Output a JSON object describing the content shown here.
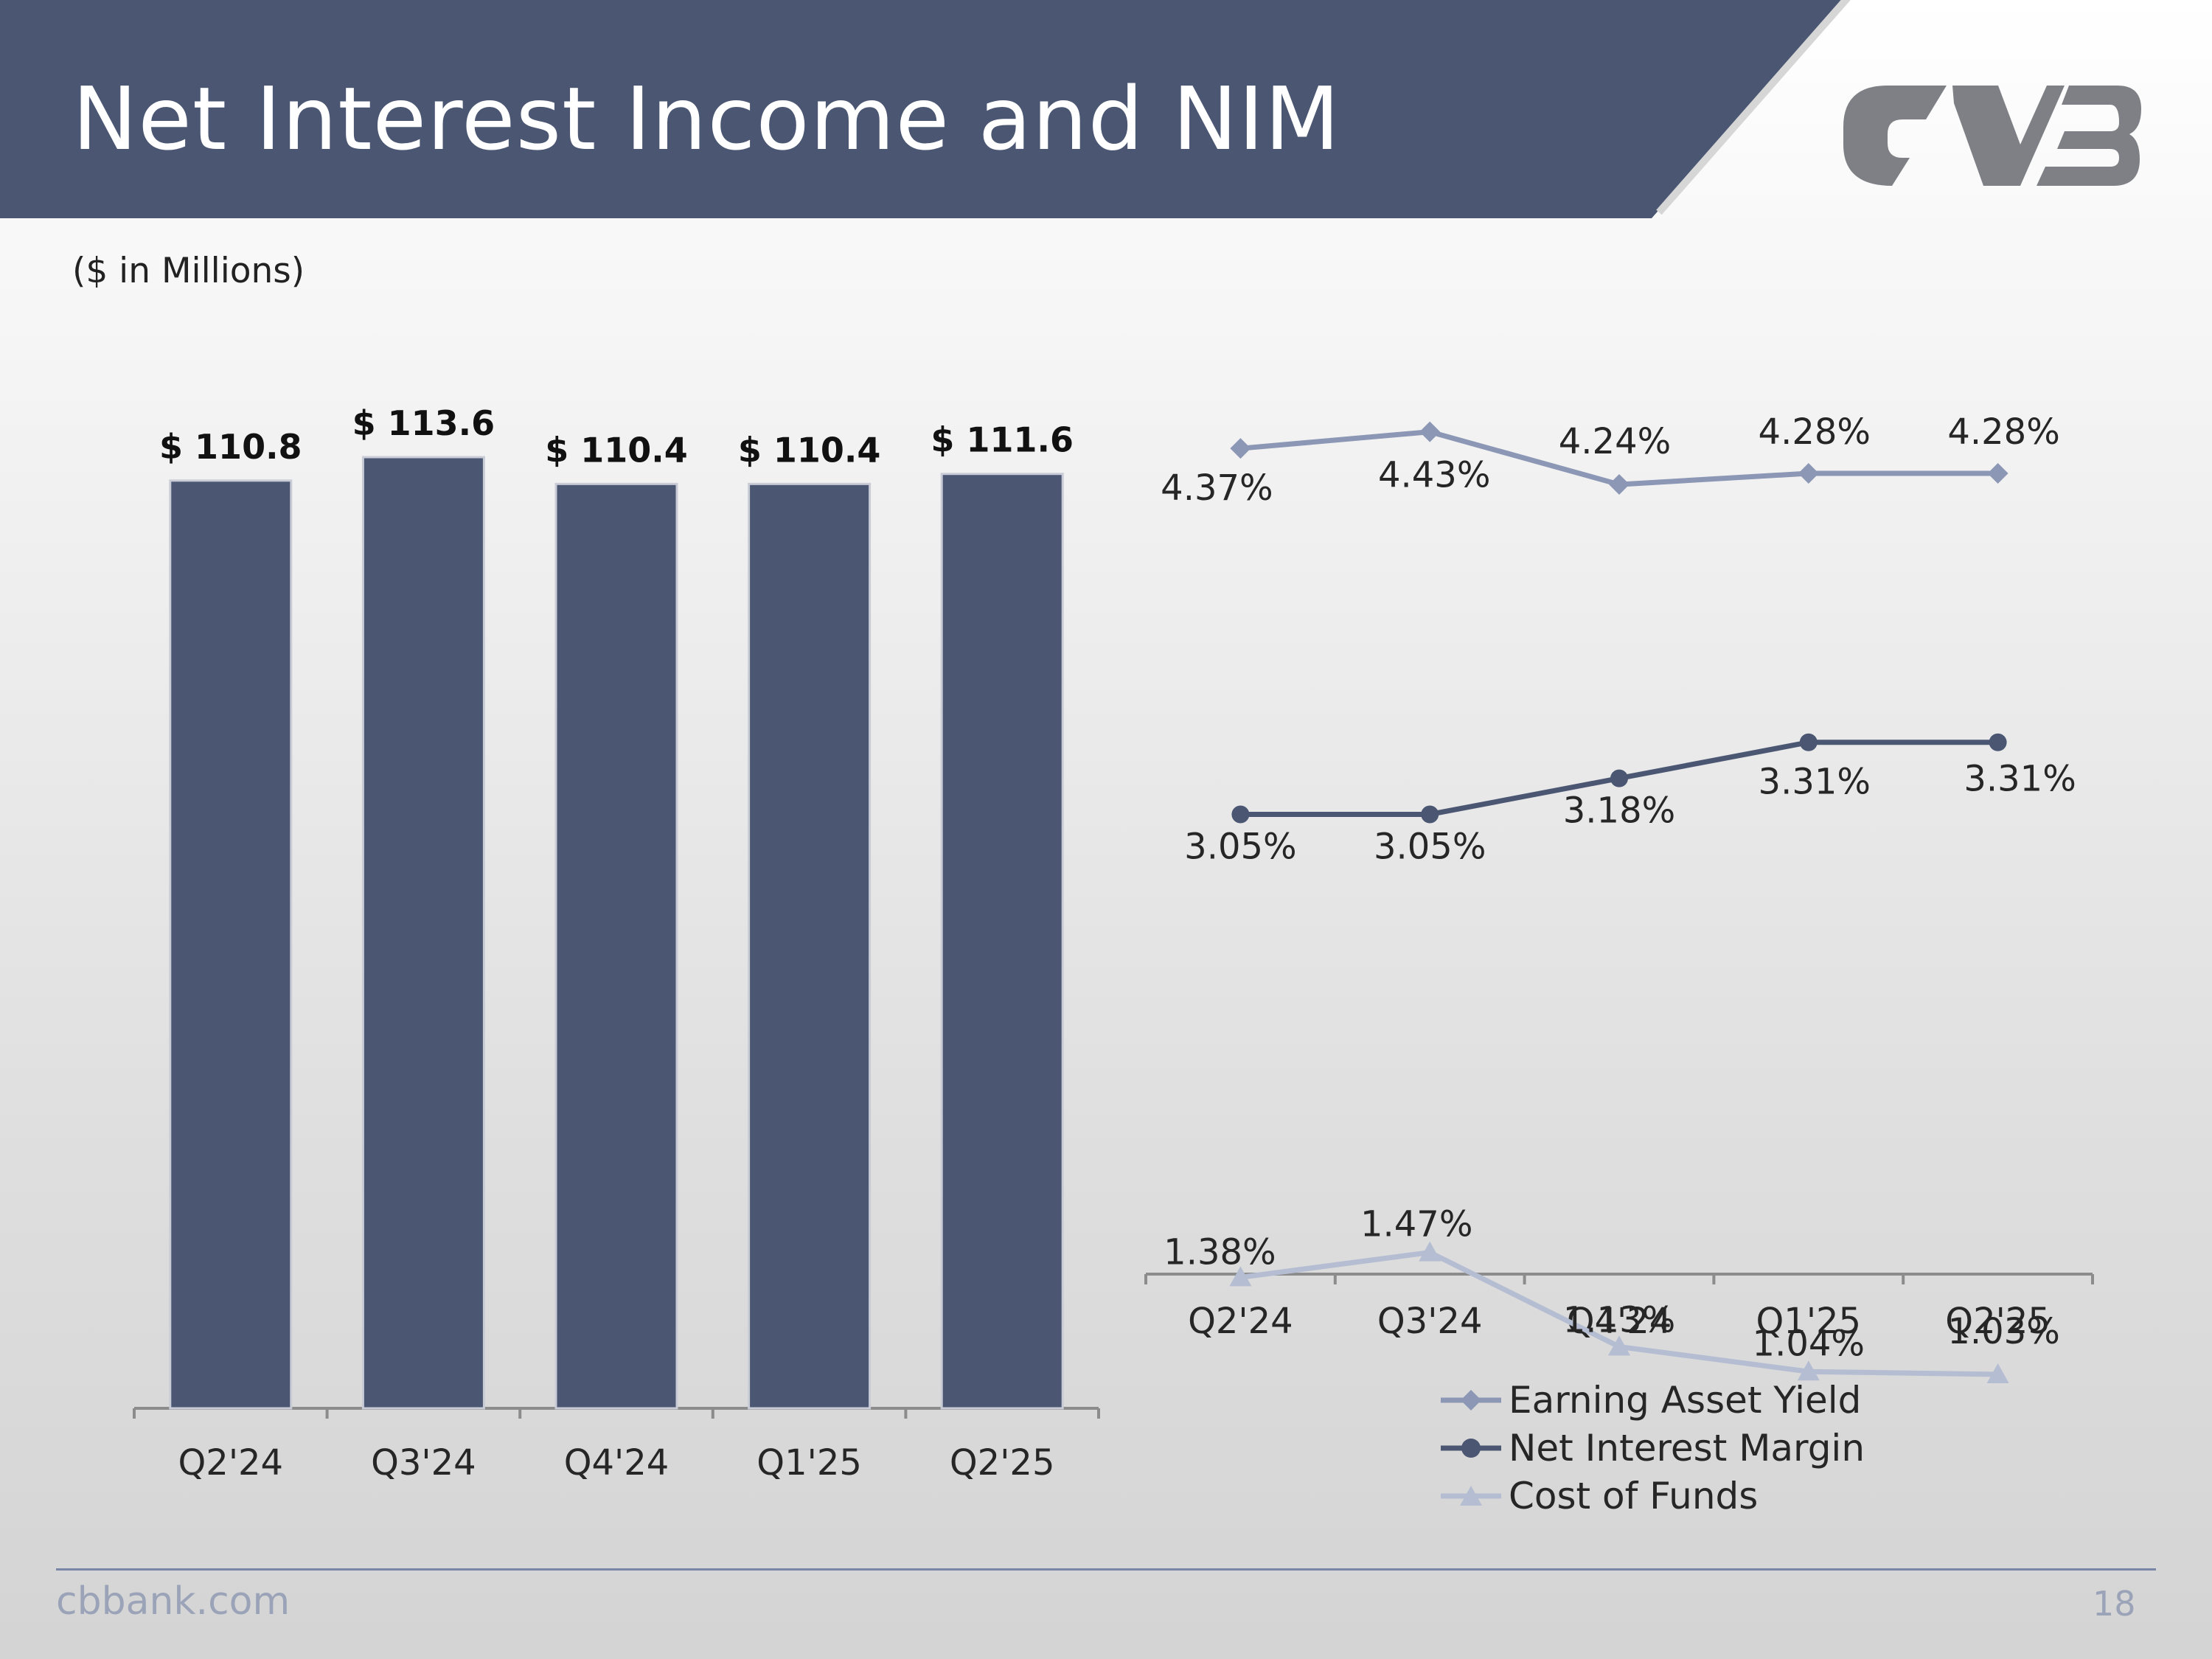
{
  "header": {
    "title": "Net Interest Income and NIM",
    "logo_text": "CVB",
    "band_color": "#4a5672",
    "logo_color": "#7e8085"
  },
  "subtitle": "($ in Millions)",
  "footer": {
    "url": "cbbank.com",
    "page_number": "18"
  },
  "chart_data": [
    {
      "type": "bar",
      "title": "Net Interest Income",
      "categories": [
        "Q2'24",
        "Q3'24",
        "Q4'24",
        "Q1'25",
        "Q2'25"
      ],
      "values": [
        110.8,
        113.6,
        110.4,
        110.4,
        111.6
      ],
      "data_labels": [
        "$ 110.8",
        "$ 113.6",
        "$ 110.4",
        "$ 110.4",
        "$ 111.6"
      ],
      "ylim": [
        0,
        113.6
      ],
      "bar_color": "#4a5672",
      "grid": false
    },
    {
      "type": "line",
      "categories": [
        "Q2'24",
        "Q3'24",
        "Q4'24",
        "Q1'25",
        "Q2'25"
      ],
      "ylim": [
        0.5,
        4.6
      ],
      "grid": false,
      "legend_position": "bottom",
      "series": [
        {
          "name": "Earning Asset Yield",
          "values": [
            4.37,
            4.43,
            4.24,
            4.28,
            4.28
          ],
          "labels": [
            "4.37%",
            "4.43%",
            "4.24%",
            "4.28%",
            "4.28%"
          ],
          "marker": "diamond",
          "color": "#8b97b5"
        },
        {
          "name": "Net Interest Margin",
          "values": [
            3.05,
            3.05,
            3.18,
            3.31,
            3.31
          ],
          "labels": [
            "3.05%",
            "3.05%",
            "3.18%",
            "3.31%",
            "3.31%"
          ],
          "marker": "circle",
          "color": "#4a5672"
        },
        {
          "name": "Cost of Funds",
          "values": [
            1.38,
            1.47,
            1.13,
            1.04,
            1.03
          ],
          "labels": [
            "1.38%",
            "1.47%",
            "1.13%",
            "1.04%",
            "1.03%"
          ],
          "marker": "triangle",
          "color": "#b5bdd2"
        }
      ]
    }
  ]
}
